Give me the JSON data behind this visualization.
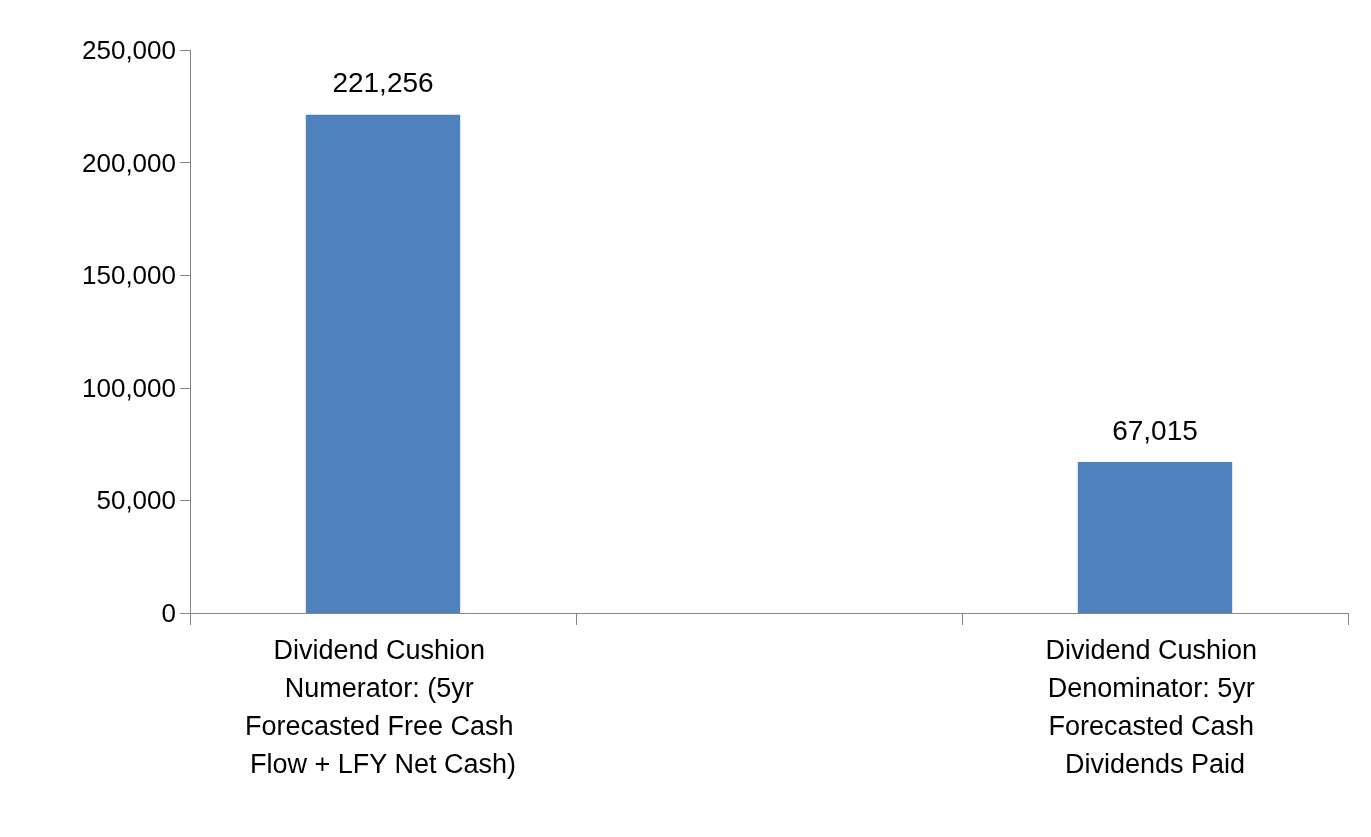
{
  "chart_data": {
    "type": "bar",
    "categories": [
      "Dividend Cushion Numerator: (5yr Forecasted Free Cash Flow + LFY Net Cash)",
      null,
      "Dividend Cushion Denominator: 5yr Forecasted Cash Dividends Paid"
    ],
    "values": [
      221256,
      null,
      67015
    ],
    "value_labels": [
      "221,256",
      null,
      "67,015"
    ],
    "color": "#4f81bd",
    "ylim": [
      0,
      250000
    ],
    "yticks": [
      0,
      {
        "value": 50000,
        "label": "50,000"
      },
      {
        "value": 100000,
        "label": "100,000"
      },
      {
        "value": 150000,
        "label": "150,000"
      },
      {
        "value": 200000,
        "label": "200,000"
      },
      {
        "value": 250000,
        "label": "250,000"
      }
    ],
    "grid": false
  }
}
